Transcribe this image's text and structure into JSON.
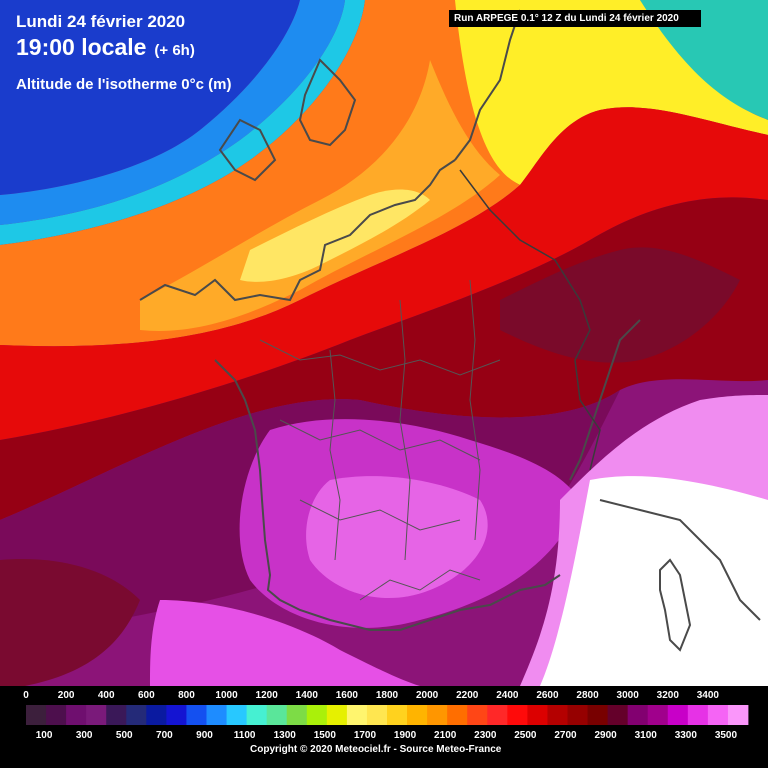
{
  "header": {
    "date_line": "Lundi 24 février 2020",
    "time_line": "19:00 locale",
    "lead_time": "(+ 6h)",
    "parameter": "Altitude de l'isotherme 0°c (m)",
    "run_info": "Run ARPEGE 0.1° 12 Z du Lundi 24 février 2020"
  },
  "legend": {
    "top_labels": [
      "0",
      "200",
      "400",
      "600",
      "800",
      "1000",
      "1200",
      "1400",
      "1600",
      "1800",
      "2000",
      "2200",
      "2400",
      "2600",
      "2800",
      "3000",
      "3200",
      "3400"
    ],
    "bottom_labels": [
      "100",
      "300",
      "500",
      "700",
      "900",
      "1100",
      "1300",
      "1500",
      "1700",
      "1900",
      "2100",
      "2300",
      "2500",
      "2700",
      "2900",
      "3100",
      "3300",
      "3500"
    ],
    "colors": [
      "#3c1f3c",
      "#4d0f4d",
      "#6f0f6f",
      "#7a1a7a",
      "#3a1858",
      "#242a78",
      "#0a1aa0",
      "#1414d2",
      "#1450f0",
      "#1e8cff",
      "#28c8ff",
      "#46f0d2",
      "#5ae69a",
      "#7ddc46",
      "#aaf00a",
      "#e6f000",
      "#fff56e",
      "#ffe650",
      "#ffd21e",
      "#ffb400",
      "#ff9600",
      "#ff6e00",
      "#ff4616",
      "#ff2828",
      "#ff0a0a",
      "#dc0000",
      "#b40000",
      "#960000",
      "#780000",
      "#64002a",
      "#820070",
      "#a0008c",
      "#c800c8",
      "#e632e6",
      "#f564f5",
      "#fa96fa"
    ],
    "copyright": "Copyright © 2020 Meteociel.fr - Source Meteo-France"
  },
  "map": {
    "icons": [
      "coastline-outline",
      "country-border-outline",
      "region-border-outline"
    ],
    "field_colors": {
      "deep_blue": "#1a3ccc",
      "blue": "#1478f0",
      "cyan": "#1eb4f0",
      "orange": "#ff7a1a",
      "amber": "#ffaa28",
      "yellow": "#ffee28",
      "red": "#e60a0a",
      "dark_red": "#960014",
      "maroon": "#7a0a3c",
      "purple": "#8c1478",
      "magenta": "#c832c8",
      "pink": "#f08cf0",
      "white": "#ffffff"
    }
  }
}
